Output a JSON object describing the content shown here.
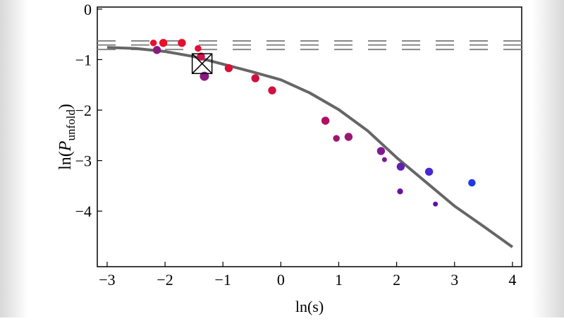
{
  "chart_data": {
    "type": "scatter",
    "x_label": "ln(s)",
    "y_label": {
      "prefix": "ln(",
      "var": "P",
      "sub": "unfold",
      "suffix": ")"
    },
    "xlim": [
      -3.17,
      4.16
    ],
    "ylim": [
      -5.1,
      0.04
    ],
    "xticks": [
      {
        "value": -3,
        "label": "−3"
      },
      {
        "value": -2,
        "label": "−2"
      },
      {
        "value": -1,
        "label": "−1"
      },
      0,
      1,
      2,
      3,
      4
    ],
    "yticks": [
      0,
      {
        "value": -1,
        "label": "−1"
      },
      {
        "value": -2,
        "label": "−2"
      },
      {
        "value": -3,
        "label": "−3"
      },
      {
        "value": -4,
        "label": "−4"
      }
    ],
    "points": {
      "x": [
        -2.2,
        -2.03,
        -1.71,
        -2.14,
        -1.43,
        -1.38,
        -1.32,
        -0.9,
        -0.44,
        -0.15,
        0.77,
        0.96,
        1.17,
        1.73,
        1.79,
        2.07,
        2.06,
        2.56,
        2.67,
        3.3
      ],
      "y": [
        -0.67,
        -0.67,
        -0.67,
        -0.81,
        -0.78,
        -0.94,
        -1.33,
        -1.17,
        -1.37,
        -1.61,
        -2.21,
        -2.56,
        -2.53,
        -2.81,
        -2.98,
        -3.12,
        -3.61,
        -3.22,
        -3.86,
        -3.44
      ],
      "sizes": [
        2,
        3,
        3,
        3,
        2,
        3,
        4,
        3,
        3,
        3,
        3,
        2,
        3,
        3,
        1,
        3,
        1.5,
        3,
        1,
        2.5
      ],
      "colors": [
        "#e8102a",
        "#e8102a",
        "#e3102e",
        "#8a1a80",
        "#e0103a",
        "#d0104a",
        "#8a1a80",
        "#d8103a",
        "#d0103f",
        "#d0103f",
        "#b01060",
        "#9a1870",
        "#9a1870",
        "#801a90",
        "#7a1a95",
        "#6020b0",
        "#7010a0",
        "#4828d0",
        "#6010a8",
        "#2038e8"
      ]
    },
    "curve": {
      "color": "#666666",
      "x": [
        -3,
        -2.5,
        -2,
        -1.5,
        -1,
        -0.5,
        0,
        0.5,
        1,
        1.5,
        2,
        2.5,
        3,
        3.5,
        4
      ],
      "y": [
        -0.76,
        -0.78,
        -0.84,
        -0.94,
        -1.09,
        -1.24,
        -1.4,
        -1.66,
        -1.99,
        -2.41,
        -2.94,
        -3.42,
        -3.9,
        -4.3,
        -4.71
      ]
    },
    "reference_lines": {
      "color": "#888888",
      "values": [
        -0.63,
        -0.71,
        -0.8
      ]
    },
    "marker": {
      "x": -1.36,
      "y": -1.08
    }
  }
}
